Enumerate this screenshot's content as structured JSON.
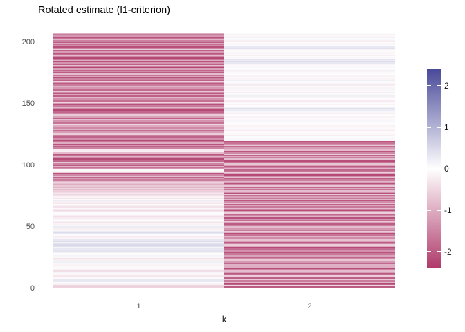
{
  "chart": {
    "title": "Rotated estimate (l1-criterion)",
    "xlabel": "k"
  },
  "chart_data": {
    "type": "heatmap",
    "title": "Rotated estimate (l1-criterion)",
    "xlabel": "k",
    "ylabel": "",
    "categories": [
      "1",
      "2"
    ],
    "n_rows": 208,
    "y_ticks": [
      0,
      50,
      100,
      150,
      200
    ],
    "grid": false,
    "legend": {
      "position": "right",
      "ticks": [
        2,
        1,
        0,
        -1,
        -2
      ],
      "limits": [
        -2.4,
        2.4
      ],
      "neg_color": "#AF3A6B",
      "mid_color": "#FFFFFF",
      "pos_color": "#49499A"
    },
    "row_order": "bottom_to_top",
    "series": [
      {
        "name": "k=1",
        "values": [
          -0.5,
          -0.55,
          -0.5,
          -0.2,
          -0.15,
          0.05,
          0.3,
          0.3,
          -0.1,
          -0.25,
          -0.3,
          -0.1,
          0.1,
          -0.15,
          -0.4,
          -0.2,
          0.05,
          -0.1,
          -0.3,
          -0.15,
          0.1,
          0.2,
          -0.1,
          -0.2,
          -0.35,
          -0.1,
          0.15,
          0.25,
          -0.05,
          0.2,
          0.35,
          0.45,
          0.3,
          0.15,
          0.4,
          0.5,
          0.35,
          0.2,
          0.45,
          0.3,
          0.1,
          -0.15,
          -0.25,
          0.05,
          0.3,
          0.45,
          0.25,
          -0.1,
          -0.2,
          0.15,
          0.25,
          0.1,
          -0.15,
          -0.3,
          -0.2,
          -0.05,
          0.1,
          -0.25,
          -0.4,
          -0.2,
          -0.1,
          0.05,
          -0.3,
          -0.45,
          -0.25,
          -0.1,
          -0.35,
          -0.2,
          -0.05,
          -0.3,
          -0.2,
          0.25,
          -0.1,
          -0.3,
          -0.15,
          -0.35,
          -0.5,
          -0.3,
          -0.45,
          -0.6,
          -0.8,
          -0.5,
          -0.9,
          -0.65,
          -1.0,
          -0.75,
          -0.55,
          -0.85,
          -1.6,
          -1.2,
          -1.9,
          -0.8,
          -1.45,
          -2.1,
          -0.6,
          -0.15,
          -0.1,
          -1.3,
          -1.7,
          -0.9,
          -2.0,
          -1.5,
          -0.7,
          -1.85,
          -1.1,
          -2.2,
          -1.4,
          -0.95,
          -1.75,
          -2.05,
          -0.85,
          -0.2,
          -0.25,
          -0.15,
          -1.5,
          -1.9,
          -1.25,
          -2.1,
          -1.0,
          -1.65,
          -2.2,
          -1.35,
          -0.75,
          -1.9,
          -1.55,
          -0.6,
          -2.0,
          -1.2,
          -1.8,
          -0.9,
          -1.45,
          -2.15,
          -1.05,
          -0.5,
          -1.7,
          -2.25,
          -1.3,
          -0.8,
          -1.95,
          -1.15,
          -2.05,
          -0.65,
          -1.5,
          -1.85,
          -1.0,
          -2.2,
          -1.4,
          -0.9,
          -1.6,
          -2.1,
          -1.2,
          -0.55,
          -1.75,
          -2.3,
          -1.35,
          -0.85,
          -1.95,
          -1.1,
          -2.0,
          -1.45,
          -0.7,
          -1.8,
          -2.2,
          -1.25,
          -0.95,
          -1.6,
          -2.05,
          -1.3,
          -0.6,
          -1.9,
          -1.5,
          -2.15,
          -1.05,
          -1.7,
          -0.8,
          -2.0,
          -1.4,
          -1.85,
          -1.15,
          -2.25,
          -1.55,
          -0.75,
          -1.95,
          -1.3,
          -2.1,
          -1.0,
          -1.65,
          -2.2,
          -1.45,
          -0.85,
          -1.75,
          -2.05,
          -1.2,
          -1.9,
          -0.65,
          -1.5,
          -2.15,
          -1.35,
          -1.8,
          -1.05,
          -2.0,
          -1.55,
          -0.9,
          -1.7,
          -2.1,
          -1.25,
          -1.6,
          -0.95
        ]
      },
      {
        "name": "k=2",
        "values": [
          -1.2,
          -2.0,
          -0.5,
          -1.9,
          -2.2,
          -0.9,
          -1.6,
          -0.7,
          -1.95,
          -1.3,
          -0.6,
          -1.75,
          -2.05,
          -1.2,
          -0.8,
          -1.55,
          -2.15,
          -1.0,
          -1.7,
          -0.95,
          -1.85,
          -1.25,
          -2.0,
          -0.7,
          -1.45,
          -1.9,
          -1.1,
          -0.55,
          -1.65,
          -2.1,
          -1.35,
          -0.85,
          -1.8,
          -2.2,
          -1.05,
          -0.6,
          -1.5,
          -1.95,
          -1.15,
          -0.75,
          -2.05,
          -1.4,
          -0.9,
          -1.7,
          -2.15,
          -1.0,
          -0.65,
          -1.6,
          -1.25,
          -1.9,
          -0.8,
          -1.55,
          -2.0,
          -1.1,
          -0.7,
          -1.75,
          -1.3,
          -2.1,
          -0.95,
          -1.45,
          -1.85,
          -0.6,
          -1.2,
          -2.2,
          -1.5,
          -0.85,
          -1.65,
          -1.05,
          -1.95,
          -0.75,
          -1.4,
          -2.05,
          -0.9,
          -1.6,
          -1.15,
          -1.8,
          -0.65,
          -2.15,
          -1.3,
          -0.8,
          -1.7,
          -1.0,
          -1.9,
          -0.7,
          -1.45,
          -2.1,
          -1.2,
          -0.85,
          -1.55,
          -1.95,
          -0.75,
          -1.35,
          -2.2,
          -1.05,
          -0.6,
          -1.65,
          -1.85,
          -0.9,
          -1.5,
          -2.0,
          -1.15,
          -0.7,
          -1.75,
          -2.15,
          -1.25,
          -0.8,
          -1.6,
          -1.0,
          -1.9,
          -0.65,
          -1.45,
          -2.05,
          -0.85,
          -1.55,
          -1.2,
          -1.8,
          -0.7,
          -1.35,
          -1.7,
          -2.1,
          -0.15,
          0.1,
          -0.05,
          0.05,
          -0.2,
          -0.1,
          0.15,
          -0.05,
          -0.25,
          0.1,
          -0.1,
          0.2,
          -0.15,
          0.05,
          -0.05,
          -0.2,
          0.1,
          -0.1,
          0.05,
          -0.15,
          0.15,
          -0.05,
          -0.2,
          0.1,
          -0.1,
          0.25,
          0.4,
          0.2,
          -0.05,
          -0.15,
          0.05,
          -0.1,
          -0.25,
          0.1,
          -0.05,
          -0.15,
          0.2,
          -0.1,
          0.05,
          -0.2,
          -0.1,
          0.1,
          -0.05,
          -0.15,
          0.05,
          -0.25,
          0.15,
          -0.05,
          -0.1,
          0.2,
          -0.15,
          0.05,
          -0.2,
          0.1,
          -0.05,
          -0.1,
          0.15,
          -0.2,
          0.05,
          -0.1,
          0.1,
          -0.05,
          -0.15,
          0.3,
          0.45,
          0.25,
          0.35,
          -0.1,
          0.05,
          -0.2,
          -0.05,
          0.15,
          -0.1,
          0.05,
          -0.15,
          0.4,
          0.3,
          -0.05,
          0.1,
          -0.1,
          0.05,
          -0.2,
          0.1,
          -0.05,
          0.2,
          -0.1,
          -0.15,
          0.05
        ]
      }
    ]
  }
}
